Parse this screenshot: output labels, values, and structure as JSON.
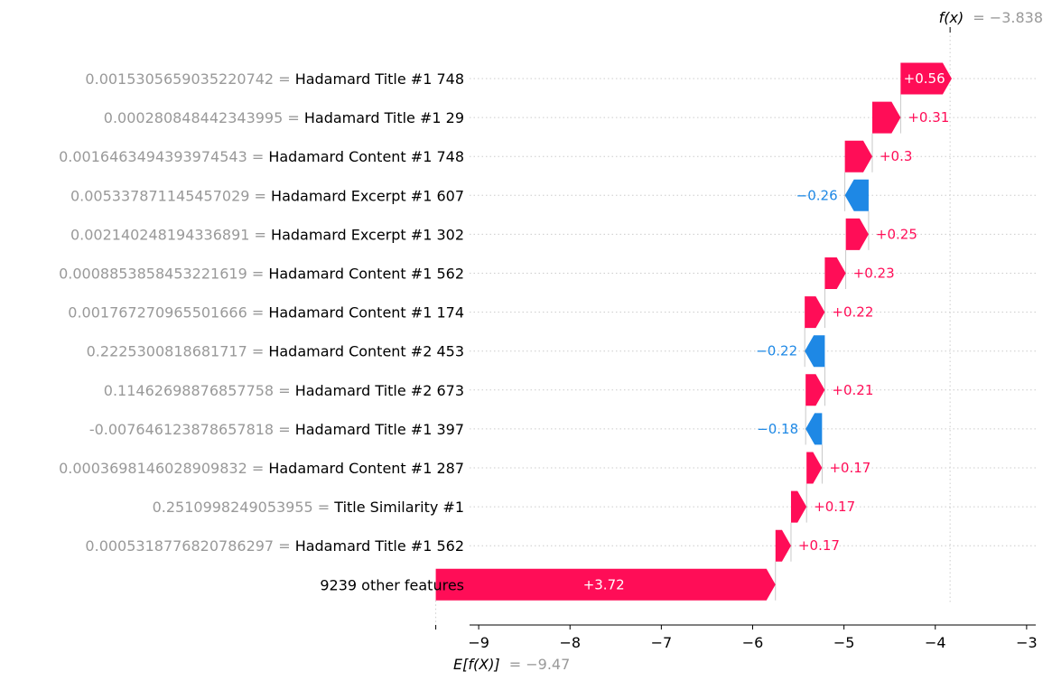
{
  "chart_data": {
    "type": "waterfall",
    "fx_label": "f(x)",
    "fx_value": "= −3.838",
    "fx": -3.838,
    "base_label": "E[f(X)]",
    "base_value_text": "= −9.47",
    "base_value": -9.47,
    "xlim": [
      -9.1,
      -2.9
    ],
    "xticks": [
      {
        "v": -9,
        "label": "−9"
      },
      {
        "v": -8,
        "label": "−8"
      },
      {
        "v": -7,
        "label": "−7"
      },
      {
        "v": -6,
        "label": "−6"
      },
      {
        "v": -5,
        "label": "−5"
      },
      {
        "v": -4,
        "label": "−4"
      },
      {
        "v": -3,
        "label": "−3"
      }
    ],
    "features": [
      {
        "value": "0.0015305659035220742 =",
        "name": "Hadamard Title #1 748",
        "contribution": 0.56,
        "label": "+0.56"
      },
      {
        "value": "0.000280848442343995 =",
        "name": "Hadamard Title #1 29",
        "contribution": 0.31,
        "label": "+0.31"
      },
      {
        "value": "0.0016463494393974543 =",
        "name": "Hadamard Content #1 748",
        "contribution": 0.3,
        "label": "+0.3"
      },
      {
        "value": "0.005337871145457029 =",
        "name": "Hadamard Excerpt #1 607",
        "contribution": -0.26,
        "label": "−0.26"
      },
      {
        "value": "0.002140248194336891 =",
        "name": "Hadamard Excerpt #1 302",
        "contribution": 0.25,
        "label": "+0.25"
      },
      {
        "value": "0.0008853858453221619 =",
        "name": "Hadamard Content #1 562",
        "contribution": 0.23,
        "label": "+0.23"
      },
      {
        "value": "0.001767270965501666 =",
        "name": "Hadamard Content #1 174",
        "contribution": 0.22,
        "label": "+0.22"
      },
      {
        "value": "0.2225300818681717 =",
        "name": "Hadamard Content #2 453",
        "contribution": -0.22,
        "label": "−0.22"
      },
      {
        "value": "0.11462698876857758 =",
        "name": "Hadamard Title #2 673",
        "contribution": 0.21,
        "label": "+0.21"
      },
      {
        "value": "-0.007646123878657818 =",
        "name": "Hadamard Title #1 397",
        "contribution": -0.18,
        "label": "−0.18"
      },
      {
        "value": "0.0003698146028909832 =",
        "name": "Hadamard Content #1 287",
        "contribution": 0.17,
        "label": "+0.17"
      },
      {
        "value": "0.2510998249053955 =",
        "name": "Title Similarity #1",
        "contribution": 0.17,
        "label": "+0.17"
      },
      {
        "value": "0.0005318776820786297 =",
        "name": "Hadamard Title #1 562",
        "contribution": 0.17,
        "label": "+0.17"
      },
      {
        "value": "",
        "name": "9239 other features",
        "contribution": 3.72,
        "label": "+3.72"
      }
    ],
    "colors": {
      "positive": "#ff0d57",
      "negative": "#1e88e5",
      "grid": "#cccccc",
      "muted": "#999999"
    }
  }
}
